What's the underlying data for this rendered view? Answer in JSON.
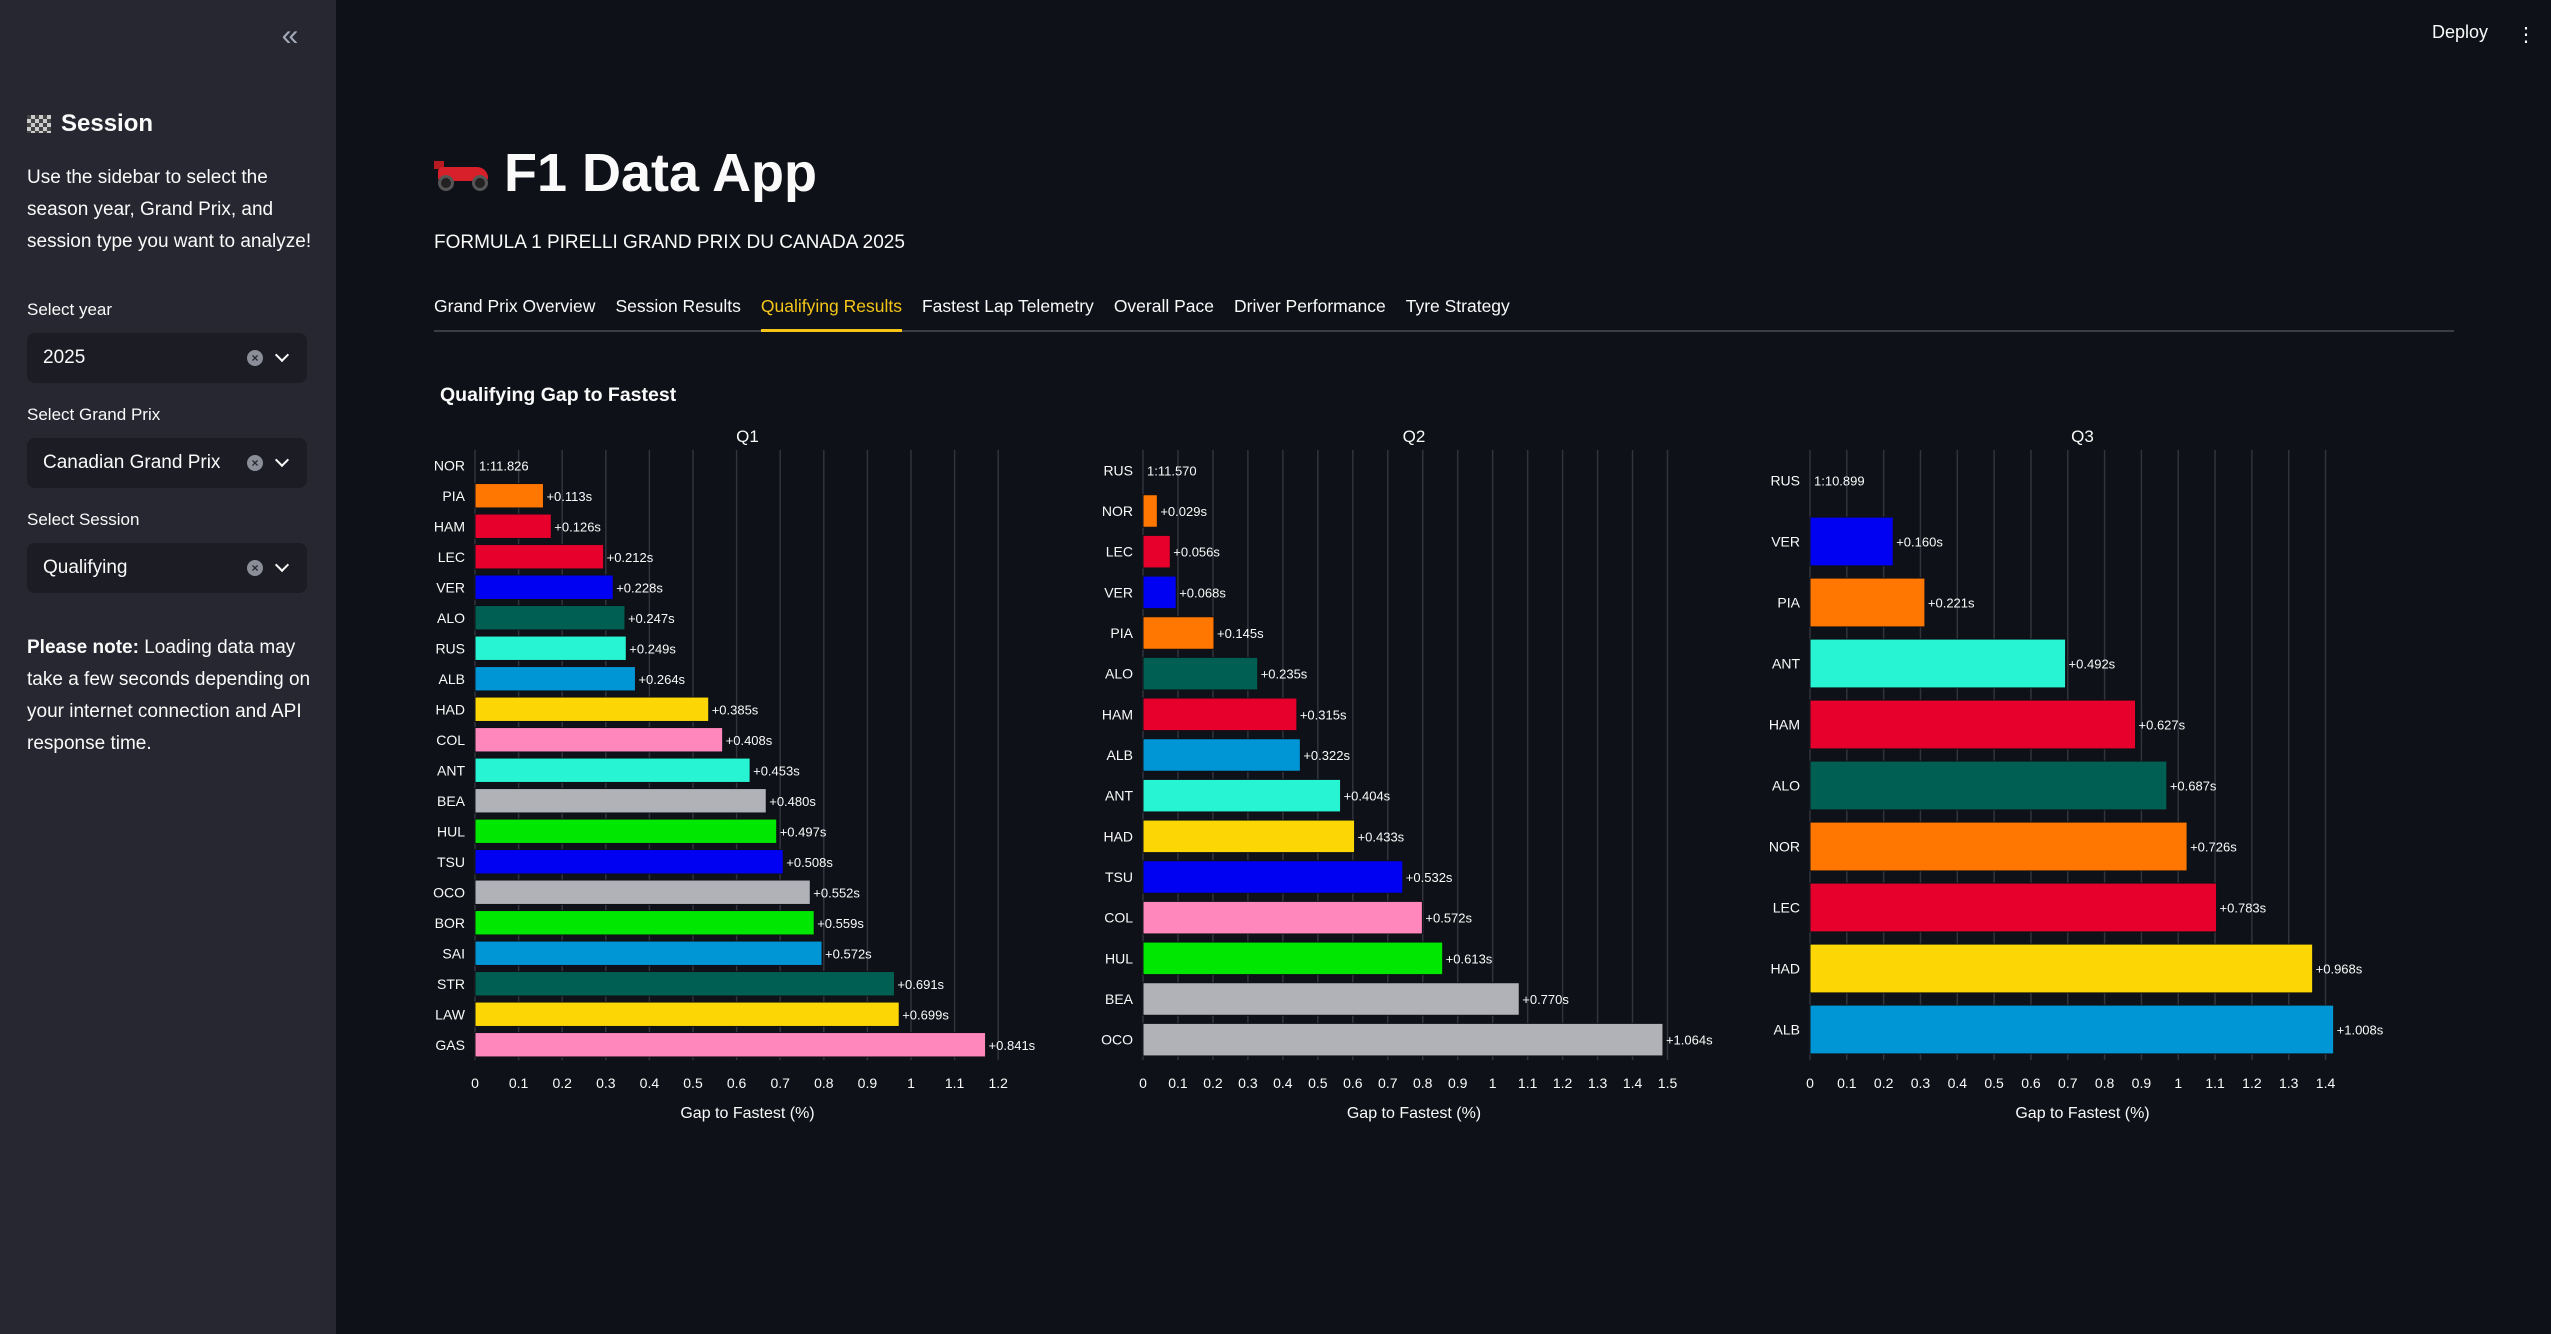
{
  "sidebar": {
    "collapse_icon": "double-chevron-left-icon",
    "header": "Session",
    "description": "Use the sidebar to select the season year, Grand Prix, and session type you want to analyze!",
    "year_label": "Select year",
    "year_value": "2025",
    "gp_label": "Select Grand Prix",
    "gp_value": "Canadian Grand Prix",
    "session_label": "Select Session",
    "session_value": "Qualifying",
    "note_bold": "Please note:",
    "note_text": " Loading data may take a few seconds depending on your internet connection and API response time."
  },
  "header": {
    "deploy": "Deploy",
    "menu_icon": "kebab-menu-icon"
  },
  "main": {
    "title": "F1 Data App",
    "subtitle": "FORMULA 1 PIRELLI GRAND PRIX DU CANADA 2025",
    "tabs": [
      "Grand Prix Overview",
      "Session Results",
      "Qualifying Results",
      "Fastest Lap Telemetry",
      "Overall Pace",
      "Driver Performance",
      "Tyre Strategy"
    ],
    "active_tab": 2,
    "chart_title": "Qualifying Gap to Fastest"
  },
  "team_colors": {
    "McLaren": "#ff7700",
    "Ferrari": "#e8002d",
    "RedBull": "#0000f2",
    "AstonMartin": "#005f53",
    "Mercedes": "#27f4d2",
    "Williams": "#0096d6",
    "RacingBulls": "#fcd705",
    "Alpine": "#ff87bc",
    "Haas": "#b0b2b7",
    "Sauber": "#00e701"
  },
  "chart_data": [
    {
      "type": "bar",
      "orientation": "horizontal",
      "title": "Q1",
      "xlabel": "Gap to Fastest (%)",
      "xlim": [
        0,
        1.25
      ],
      "xticks": [
        0,
        0.1,
        0.2,
        0.3,
        0.4,
        0.5,
        0.6,
        0.7,
        0.8,
        0.9,
        1,
        1.1,
        1.2
      ],
      "fastest_label": "1:11.826",
      "drivers": [
        "NOR",
        "PIA",
        "HAM",
        "LEC",
        "VER",
        "ALO",
        "RUS",
        "ALB",
        "HAD",
        "COL",
        "ANT",
        "BEA",
        "HUL",
        "TSU",
        "OCO",
        "BOR",
        "SAI",
        "STR",
        "LAW",
        "GAS"
      ],
      "values": [
        0,
        0.157,
        0.175,
        0.295,
        0.317,
        0.344,
        0.347,
        0.368,
        0.536,
        0.568,
        0.631,
        0.668,
        0.692,
        0.707,
        0.769,
        0.778,
        0.796,
        0.962,
        0.973,
        1.171
      ],
      "labels": [
        "1:11.826",
        "+0.113s",
        "+0.126s",
        "+0.212s",
        "+0.228s",
        "+0.247s",
        "+0.249s",
        "+0.264s",
        "+0.385s",
        "+0.408s",
        "+0.453s",
        "+0.480s",
        "+0.497s",
        "+0.508s",
        "+0.552s",
        "+0.559s",
        "+0.572s",
        "+0.691s",
        "+0.699s",
        "+0.841s"
      ],
      "colors": [
        "",
        "#ff7700",
        "#e8002d",
        "#e8002d",
        "#0000f2",
        "#005f53",
        "#27f4d2",
        "#0096d6",
        "#fcd705",
        "#ff87bc",
        "#27f4d2",
        "#b0b2b7",
        "#00e701",
        "#0000f2",
        "#b0b2b7",
        "#00e701",
        "#0096d6",
        "#005f53",
        "#fcd705",
        "#ff87bc"
      ]
    },
    {
      "type": "bar",
      "orientation": "horizontal",
      "title": "Q2",
      "xlabel": "Gap to Fastest (%)",
      "xlim": [
        0,
        1.55
      ],
      "xticks": [
        0,
        0.1,
        0.2,
        0.3,
        0.4,
        0.5,
        0.6,
        0.7,
        0.8,
        0.9,
        1,
        1.1,
        1.2,
        1.3,
        1.4,
        1.5
      ],
      "fastest_label": "1:11.570",
      "drivers": [
        "RUS",
        "NOR",
        "LEC",
        "VER",
        "PIA",
        "ALO",
        "HAM",
        "ALB",
        "ANT",
        "HAD",
        "TSU",
        "COL",
        "HUL",
        "BEA",
        "OCO"
      ],
      "values": [
        0,
        0.041,
        0.078,
        0.095,
        0.203,
        0.328,
        0.44,
        0.45,
        0.565,
        0.605,
        0.743,
        0.799,
        0.857,
        1.076,
        1.487
      ],
      "labels": [
        "1:11.570",
        "+0.029s",
        "+0.056s",
        "+0.068s",
        "+0.145s",
        "+0.235s",
        "+0.315s",
        "+0.322s",
        "+0.404s",
        "+0.433s",
        "+0.532s",
        "+0.572s",
        "+0.613s",
        "+0.770s",
        "+1.064s"
      ],
      "colors": [
        "",
        "#ff7700",
        "#e8002d",
        "#0000f2",
        "#ff7700",
        "#005f53",
        "#e8002d",
        "#0096d6",
        "#27f4d2",
        "#fcd705",
        "#0000f2",
        "#ff87bc",
        "#00e701",
        "#b0b2b7",
        "#b0b2b7"
      ]
    },
    {
      "type": "bar",
      "orientation": "horizontal",
      "title": "Q3",
      "xlabel": "Gap to Fastest (%)",
      "xlim": [
        0,
        1.48
      ],
      "xticks": [
        0,
        0.1,
        0.2,
        0.3,
        0.4,
        0.5,
        0.6,
        0.7,
        0.8,
        0.9,
        1,
        1.1,
        1.2,
        1.3,
        1.4
      ],
      "fastest_label": "1:10.899",
      "drivers": [
        "RUS",
        "VER",
        "PIA",
        "ANT",
        "HAM",
        "ALO",
        "NOR",
        "LEC",
        "HAD",
        "ALB"
      ],
      "values": [
        0,
        0.226,
        0.312,
        0.694,
        0.884,
        0.969,
        1.024,
        1.104,
        1.365,
        1.422
      ],
      "labels": [
        "1:10.899",
        "+0.160s",
        "+0.221s",
        "+0.492s",
        "+0.627s",
        "+0.687s",
        "+0.726s",
        "+0.783s",
        "+0.968s",
        "+1.008s"
      ],
      "colors": [
        "",
        "#0000f2",
        "#ff7700",
        "#27f4d2",
        "#e8002d",
        "#005f53",
        "#ff7700",
        "#e8002d",
        "#fcd705",
        "#0096d6"
      ]
    }
  ]
}
